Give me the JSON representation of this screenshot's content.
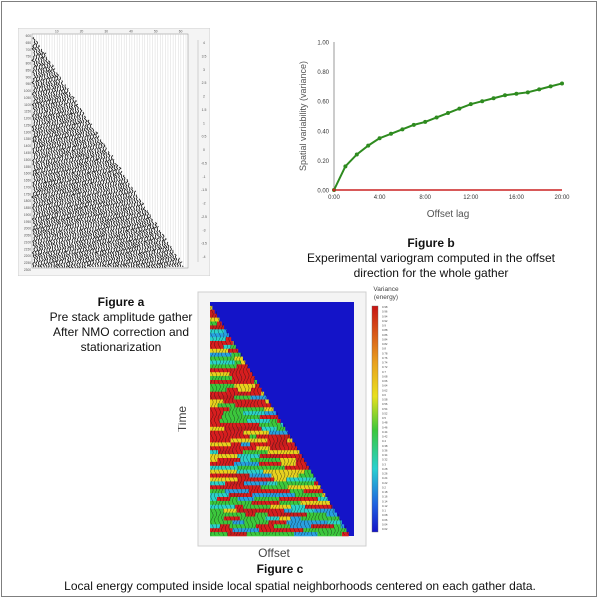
{
  "figure_a": {
    "title": "Figure a",
    "lines": [
      "Pre stack amplitude gather",
      "After NMO correction  and",
      "stationarization"
    ],
    "time_ticks": [
      "600",
      "650",
      "700",
      "750",
      "800",
      "850",
      "900",
      "950",
      "1000",
      "1050",
      "1100",
      "1150",
      "1200",
      "1250",
      "1300",
      "1350",
      "1400",
      "1450",
      "1500",
      "1550",
      "1600",
      "1650",
      "1700",
      "1750",
      "1800",
      "1850",
      "1900",
      "1950",
      "2000",
      "2050",
      "2100",
      "2150",
      "2200",
      "2250",
      "2300"
    ],
    "offset_ticks": [
      "10",
      "20",
      "30",
      "40",
      "50",
      "60"
    ],
    "colorbar_ticks": [
      "4",
      "3.5",
      "3",
      "2.5",
      "2",
      "1.5",
      "1",
      "0.5",
      "0",
      "-0.5",
      "-1",
      "-1.5",
      "-2",
      "-2.5",
      "-3",
      "-3.5",
      "-4"
    ]
  },
  "figure_b": {
    "title": "Figure b",
    "lines": [
      "Experimental variogram computed in the offset",
      "direction for the whole gather"
    ]
  },
  "figure_c": {
    "title": "Figure c",
    "caption": "Local energy  computed  inside local spatial neighborhoods centered  on  each gather data.",
    "ylabel": "Time",
    "xlabel": "Offset",
    "colorbar_title": [
      "Variance",
      "(energy)"
    ],
    "colorbar_ticks": [
      "0.98",
      "0.96",
      "0.94",
      "0.92",
      "0.9",
      "0.88",
      "0.86",
      "0.84",
      "0.82",
      "0.8",
      "0.78",
      "0.76",
      "0.74",
      "0.72",
      "0.7",
      "0.68",
      "0.66",
      "0.64",
      "0.62",
      "0.6",
      "0.58",
      "0.56",
      "0.54",
      "0.52",
      "0.5",
      "0.48",
      "0.46",
      "0.44",
      "0.42",
      "0.4",
      "0.38",
      "0.36",
      "0.34",
      "0.32",
      "0.3",
      "0.28",
      "0.26",
      "0.24",
      "0.22",
      "0.2",
      "0.18",
      "0.16",
      "0.14",
      "0.12",
      "0.1",
      "0.08",
      "0.06",
      "0.04",
      "0.02"
    ]
  },
  "chart_data": {
    "type": "line",
    "x": [
      0,
      1,
      2,
      3,
      4,
      5,
      6,
      7,
      8,
      9,
      10,
      11,
      12,
      13,
      14,
      15,
      16,
      17,
      18,
      19,
      20
    ],
    "x_tick_labels": [
      "0:00",
      "4:00",
      "8:00",
      "12:00",
      "16:00",
      "20:00"
    ],
    "x_tick_values": [
      0,
      4,
      8,
      12,
      16,
      20
    ],
    "series": [
      {
        "values": [
          0.0,
          0.16,
          0.24,
          0.3,
          0.35,
          0.38,
          0.41,
          0.44,
          0.46,
          0.49,
          0.52,
          0.55,
          0.58,
          0.6,
          0.62,
          0.64,
          0.65,
          0.66,
          0.68,
          0.7,
          0.72
        ],
        "color": "#2e8b1f"
      },
      {
        "values": [
          0,
          0,
          0,
          0,
          0,
          0,
          0,
          0,
          0,
          0,
          0,
          0,
          0,
          0,
          0,
          0,
          0,
          0,
          0,
          0,
          0
        ],
        "color": "#cc2222"
      }
    ],
    "y_tick_labels": [
      "0.00",
      "0.20",
      "0.40",
      "0.60",
      "0.80",
      "1.00"
    ],
    "xlabel": "Offset lag",
    "ylabel": "Spatial variability (variance)",
    "xlim": [
      0,
      20
    ],
    "ylim": [
      0,
      1
    ],
    "grid": false
  },
  "colors": {
    "variogram": "#2e8b1f",
    "baseline": "#cc2222",
    "energy_background": "#1414c8",
    "frame": "#7f7f7f"
  }
}
